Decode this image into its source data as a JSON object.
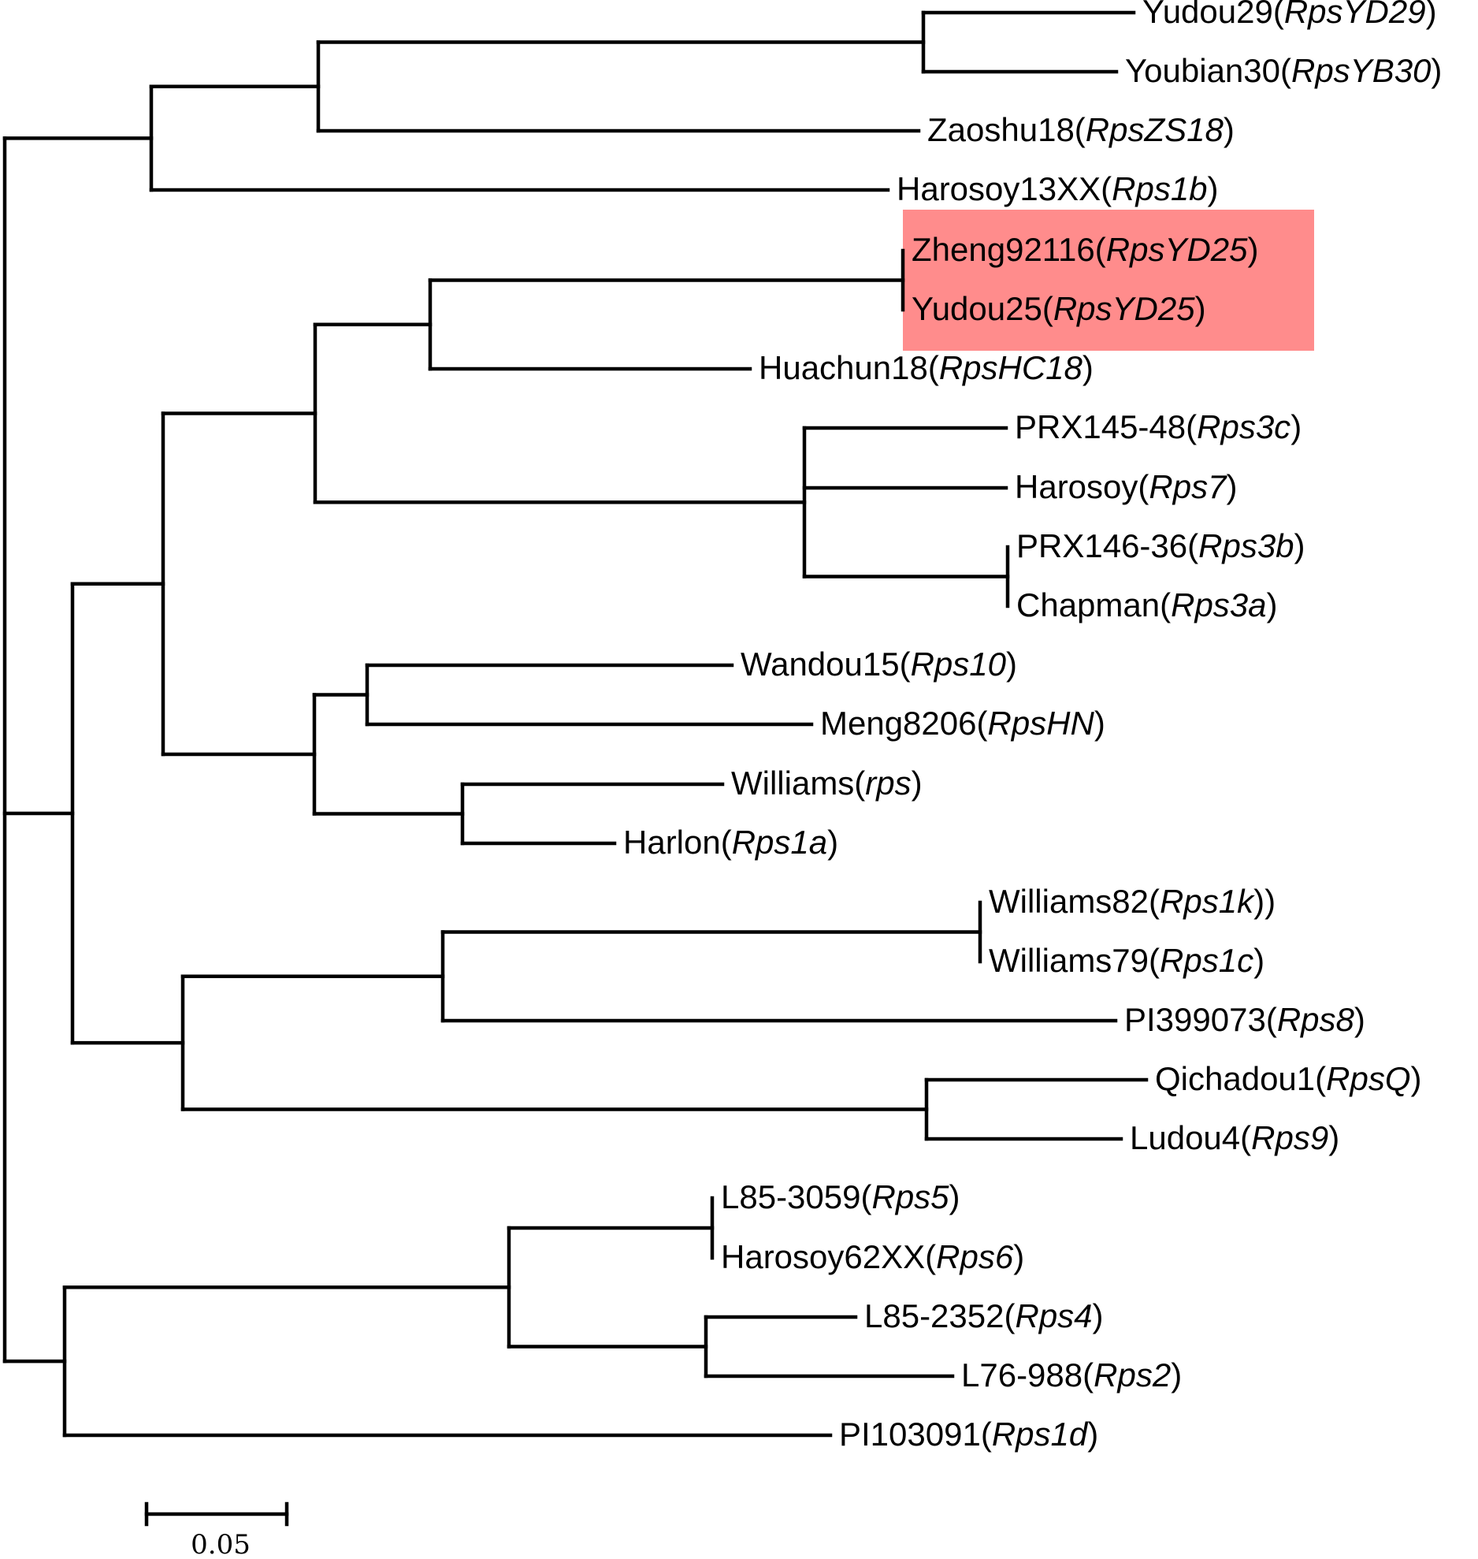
{
  "highlight_color": "#ff8c8c",
  "leaves": [
    {
      "name": "Yudou29",
      "gene": "RpsYD29",
      "close": ")"
    },
    {
      "name": "Youbian30",
      "gene": "RpsYB30",
      "close": ")"
    },
    {
      "name": "Zaoshu18",
      "gene": "RpsZS18",
      "close": ")"
    },
    {
      "name": "Harosoy13XX",
      "gene": "Rps1b",
      "close": ")"
    },
    {
      "name": "Zheng92116",
      "gene": "RpsYD25",
      "close": ")",
      "highlight": true
    },
    {
      "name": "Yudou25",
      "gene": "RpsYD25",
      "close": ")",
      "highlight": true
    },
    {
      "name": "Huachun18",
      "gene": "RpsHC18",
      "close": ")"
    },
    {
      "name": "PRX145-48",
      "gene": "Rps3c",
      "close": ")"
    },
    {
      "name": "Harosoy",
      "gene": "Rps7",
      "close": ")"
    },
    {
      "name": "PRX146-36",
      "gene": "Rps3b",
      "close": ")"
    },
    {
      "name": "Chapman",
      "gene": "Rps3a",
      "close": ")"
    },
    {
      "name": "Wandou15",
      "gene": "Rps10",
      "close": ")"
    },
    {
      "name": "Meng8206",
      "gene": "RpsHN",
      "close": ")"
    },
    {
      "name": "Williams",
      "gene": "rps",
      "close": ")"
    },
    {
      "name": "Harlon",
      "gene": "Rps1a",
      "close": ")"
    },
    {
      "name": "Williams82",
      "gene": "Rps1k",
      "close": "))"
    },
    {
      "name": "Williams79",
      "gene": "Rps1c",
      "close": ")"
    },
    {
      "name": "PI399073",
      "gene": "Rps8",
      "close": ")"
    },
    {
      "name": "Qichadou1",
      "gene": "RpsQ",
      "close": ")"
    },
    {
      "name": "Ludou4",
      "gene": "Rps9",
      "close": ")"
    },
    {
      "name": "L85-3059",
      "gene": "Rps5",
      "close": ")"
    },
    {
      "name": "Harosoy62XX",
      "gene": "Rps6",
      "close": ")"
    },
    {
      "name": "L85-2352",
      "gene": "Rps4",
      "close": ")"
    },
    {
      "name": "L76-988",
      "gene": "Rps2",
      "close": ")"
    },
    {
      "name": "PI103091",
      "gene": "Rps1d",
      "close": ")"
    }
  ],
  "scale_bar": {
    "label": "0.05",
    "value": 0.05
  }
}
